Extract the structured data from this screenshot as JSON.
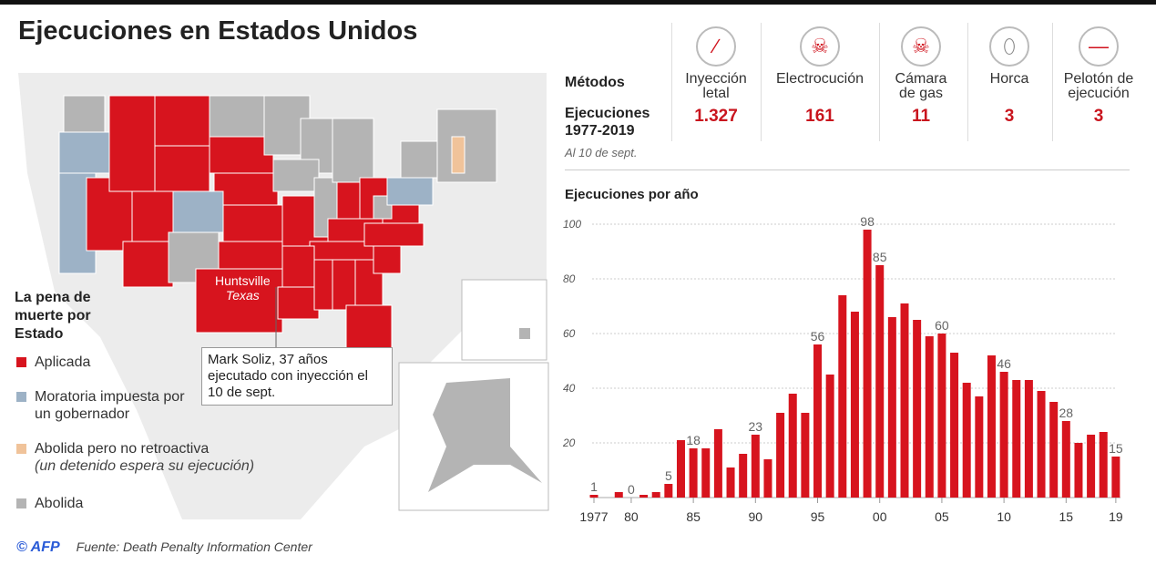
{
  "title": "Ejecuciones en Estados Unidos",
  "legend": {
    "title": "La pena de muerte por Estado",
    "items": [
      {
        "label": "Aplicada",
        "color": "#d7141e"
      },
      {
        "label": "Moratoria impuesta por un gobernador",
        "color": "#9db2c6"
      },
      {
        "label": "Abolida pero no retroactiva",
        "sub": "(un detenido espera su ejecución)",
        "color": "#f0c39a"
      },
      {
        "label": "Abolida",
        "color": "#b4b4b4"
      }
    ]
  },
  "map": {
    "city": "Huntsville",
    "state": "Texas",
    "note": "Mark Soliz, 37 años ejecutado con inyección el 10 de sept."
  },
  "methods": {
    "header": "Métodos",
    "executions_header": "Ejecuciones 1977-2019",
    "as_of": "Al 10 de sept.",
    "items": [
      {
        "label": "Inyección letal",
        "value": "1.327",
        "icon": "syringe-icon"
      },
      {
        "label": "Electrocución",
        "value": "161",
        "icon": "electric-skull-icon"
      },
      {
        "label": "Cámara de gas",
        "value": "11",
        "icon": "gas-skull-icon"
      },
      {
        "label": "Horca",
        "value": "3",
        "icon": "noose-icon"
      },
      {
        "label": "Pelotón de ejecución",
        "value": "3",
        "icon": "rifle-icon"
      }
    ]
  },
  "footer": {
    "credit": "© AFP",
    "source": "Fuente: Death Penalty Information Center"
  },
  "chart_data": {
    "type": "bar",
    "title": "Ejecuciones por año",
    "ylim": [
      0,
      100
    ],
    "yticks": [
      20,
      40,
      60,
      80,
      100
    ],
    "x": [
      1977,
      1978,
      1979,
      1980,
      1981,
      1982,
      1983,
      1984,
      1985,
      1986,
      1987,
      1988,
      1989,
      1990,
      1991,
      1992,
      1993,
      1994,
      1995,
      1996,
      1997,
      1998,
      1999,
      2000,
      2001,
      2002,
      2003,
      2004,
      2005,
      2006,
      2007,
      2008,
      2009,
      2010,
      2011,
      2012,
      2013,
      2014,
      2015,
      2016,
      2017,
      2018,
      2019
    ],
    "values": [
      1,
      0,
      2,
      0,
      1,
      2,
      5,
      21,
      18,
      18,
      25,
      11,
      16,
      23,
      14,
      31,
      38,
      31,
      56,
      45,
      74,
      68,
      98,
      85,
      66,
      71,
      65,
      59,
      60,
      53,
      42,
      37,
      52,
      46,
      43,
      43,
      39,
      35,
      28,
      20,
      23,
      24,
      15
    ],
    "labeled_years": [
      1977,
      1980,
      1983,
      1985,
      1990,
      1995,
      1999,
      2000,
      2005,
      2010,
      2015,
      2019
    ],
    "xticks": [
      {
        "year": 1977,
        "label": "1977"
      },
      {
        "year": 1980,
        "label": "80"
      },
      {
        "year": 1985,
        "label": "85"
      },
      {
        "year": 1990,
        "label": "90"
      },
      {
        "year": 1995,
        "label": "95"
      },
      {
        "year": 2000,
        "label": "00"
      },
      {
        "year": 2005,
        "label": "05"
      },
      {
        "year": 2010,
        "label": "10"
      },
      {
        "year": 2015,
        "label": "15"
      },
      {
        "year": 2019,
        "label": "19"
      }
    ],
    "bar_color": "#d7141e"
  }
}
